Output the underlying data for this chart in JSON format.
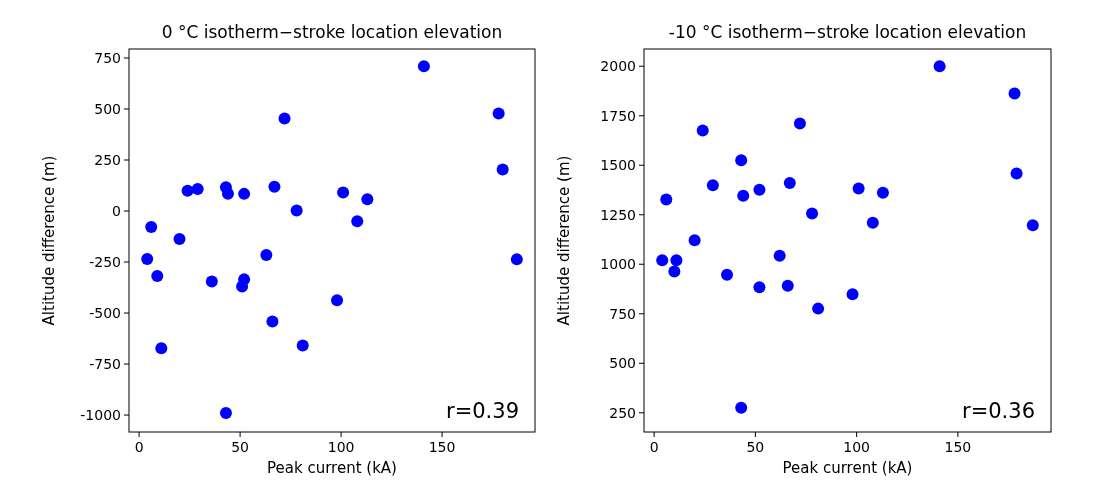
{
  "chart_data": [
    {
      "type": "scatter",
      "title": "0 °C isotherm−stroke location elevation",
      "xlabel": "Peak current (kA)",
      "ylabel": "Altitude difference (m)",
      "annotations": [
        "r=0.39"
      ],
      "marker": "circle",
      "xlim": [
        -5,
        196
      ],
      "ylim": [
        -1083,
        794
      ],
      "xticks": [
        0,
        50,
        100,
        150
      ],
      "yticks": [
        -1000,
        -750,
        -500,
        -250,
        0,
        250,
        500,
        750
      ],
      "series": [
        {
          "color": "#0000ff",
          "x": [
            141,
            178,
            180,
            187,
            72,
            24,
            29,
            43,
            44,
            52,
            67,
            78,
            101,
            113,
            108,
            6,
            20,
            4,
            9,
            63,
            36,
            52,
            51,
            66,
            98,
            81,
            11,
            43
          ],
          "values": [
            710,
            478,
            203,
            -237,
            453,
            99,
            108,
            117,
            85,
            84,
            119,
            2,
            91,
            58,
            -50,
            -78,
            -137,
            -235,
            -318,
            -215,
            -345,
            -335,
            -370,
            -541,
            -437,
            -659,
            -672,
            -990
          ]
        }
      ]
    },
    {
      "type": "scatter",
      "title": "-10 °C isotherm−stroke location elevation",
      "xlabel": "Peak current (kA)",
      "ylabel": "Altitude difference (m)",
      "annotations": [
        "r=0.36"
      ],
      "marker": "circle",
      "xlim": [
        -5,
        196
      ],
      "ylim": [
        153,
        2087
      ],
      "xticks": [
        0,
        50,
        100,
        150
      ],
      "yticks": [
        250,
        500,
        750,
        1000,
        1250,
        1500,
        1750,
        2000
      ],
      "series": [
        {
          "color": "#0000ff",
          "x": [
            141,
            178,
            179,
            187,
            24,
            72,
            43,
            29,
            67,
            52,
            44,
            6,
            101,
            113,
            78,
            108,
            20,
            4,
            11,
            10,
            62,
            36,
            52,
            66,
            98,
            81,
            43
          ],
          "values": [
            2000,
            1862,
            1458,
            1197,
            1676,
            1711,
            1525,
            1399,
            1410,
            1376,
            1346,
            1327,
            1382,
            1361,
            1256,
            1210,
            1121,
            1020,
            1020,
            963,
            1043,
            947,
            884,
            891,
            849,
            776,
            275
          ]
        }
      ]
    }
  ]
}
